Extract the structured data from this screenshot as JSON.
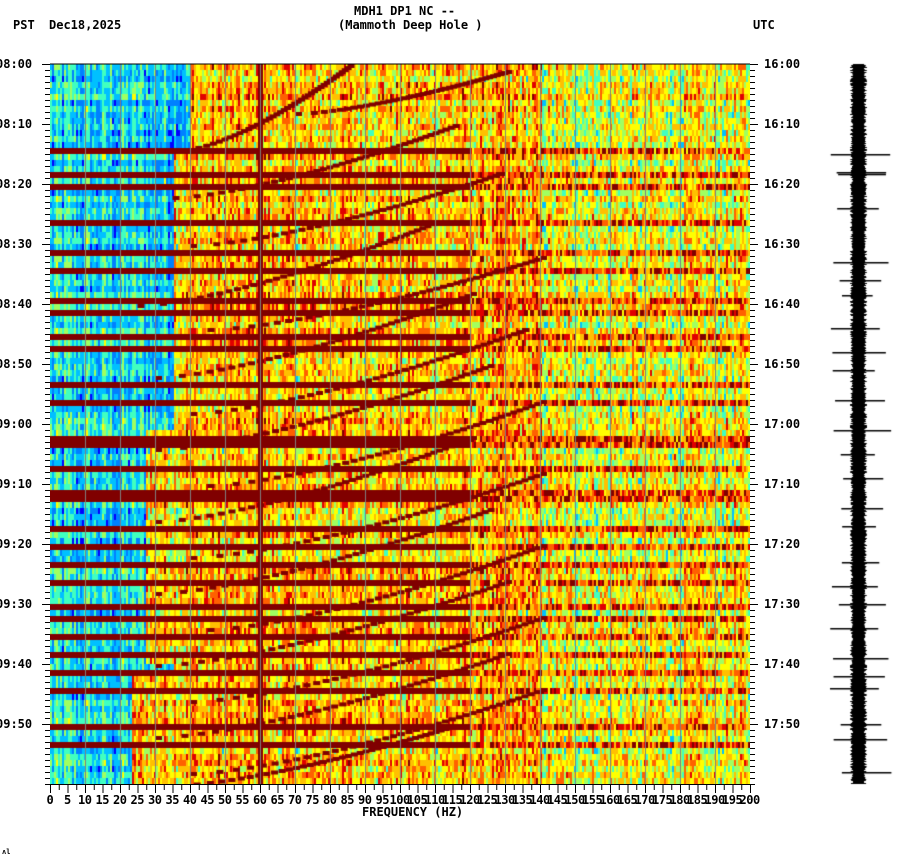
{
  "header": {
    "station_line": "MDH1 DP1 NC --",
    "site_name": "(Mammoth Deep Hole )",
    "left_timezone": "PST",
    "date": "Dec18,2025",
    "right_timezone": "UTC"
  },
  "footer_mark": "ʌl",
  "colors": {
    "background": "#ffffff",
    "axis": "#000000",
    "grid": "#7f7f7f",
    "colormap": [
      "#0000ff",
      "#0080ff",
      "#00c0ff",
      "#40ffc0",
      "#a0ff60",
      "#ffff00",
      "#ffc000",
      "#ff6000",
      "#e00000",
      "#800000"
    ]
  },
  "chart_data": {
    "type": "heatmap",
    "title": "MDH1 DP1 NC -- (Mammoth Deep Hole )",
    "xlabel": "FREQUENCY (HZ)",
    "ylabel": "",
    "xlim": [
      0,
      200
    ],
    "x_ticks": [
      0,
      5,
      10,
      15,
      20,
      25,
      30,
      35,
      40,
      45,
      50,
      55,
      60,
      65,
      70,
      75,
      80,
      85,
      90,
      95,
      100,
      105,
      110,
      115,
      120,
      125,
      130,
      135,
      140,
      145,
      150,
      155,
      160,
      165,
      170,
      175,
      180,
      185,
      190,
      195,
      200
    ],
    "x_tick_labels": [
      "0",
      "5",
      "10",
      "15",
      "20",
      "25",
      "30",
      "35",
      "40",
      "45",
      "50",
      "55",
      "60",
      "65",
      "70",
      "75",
      "80",
      "85",
      "90",
      "95",
      "100",
      "105",
      "110",
      "115",
      "120",
      "125",
      "130",
      "135",
      "140",
      "145",
      "150",
      "155",
      "160",
      "165",
      "170",
      "175",
      "180",
      "185",
      "190",
      "195",
      "200"
    ],
    "grid_x_every_hz": 10,
    "y_left_labels": [
      "08:00",
      "08:10",
      "08:20",
      "08:30",
      "08:40",
      "08:50",
      "09:00",
      "09:10",
      "09:20",
      "09:30",
      "09:40",
      "09:50"
    ],
    "y_right_labels": [
      "16:00",
      "16:10",
      "16:20",
      "16:30",
      "16:40",
      "16:50",
      "17:00",
      "17:10",
      "17:20",
      "17:30",
      "17:40",
      "17:50"
    ],
    "y_minor_ticks_per_label": 5,
    "time_span_minutes": 120,
    "persistent_line_hz": 60,
    "low_energy_region": {
      "from_hz": 0,
      "to_hz": 35,
      "note": "blue/cyan low amplitude below ~35 Hz, widening toward 09:40-09:55"
    },
    "broadband_bursts_min": [
      14.5,
      18,
      20.5,
      26,
      31.5,
      34.5,
      39,
      41.5,
      45,
      47.5,
      53,
      56,
      62,
      63.5,
      67,
      71,
      73,
      77,
      80,
      83,
      86.5,
      90,
      92,
      95.5,
      98,
      101,
      104,
      110.5,
      113.5
    ],
    "streaks": [
      {
        "t0": 0,
        "t1": 14,
        "f0": 38,
        "f1": 85
      },
      {
        "t0": 1,
        "t1": 8,
        "f0": 70,
        "f1": 130
      },
      {
        "t0": 10,
        "t1": 22,
        "f0": 35,
        "f1": 115
      },
      {
        "t0": 18,
        "t1": 30,
        "f0": 40,
        "f1": 128
      },
      {
        "t0": 26,
        "t1": 40,
        "f0": 25,
        "f1": 110
      },
      {
        "t0": 32,
        "t1": 44,
        "f0": 45,
        "f1": 140
      },
      {
        "t0": 38,
        "t1": 52,
        "f0": 30,
        "f1": 120
      },
      {
        "t0": 44,
        "t1": 58,
        "f0": 40,
        "f1": 135
      },
      {
        "t0": 50,
        "t1": 64,
        "f0": 30,
        "f1": 125
      },
      {
        "t0": 56,
        "t1": 70,
        "f0": 45,
        "f1": 140
      },
      {
        "t0": 62,
        "t1": 76,
        "f0": 30,
        "f1": 120
      },
      {
        "t0": 68,
        "t1": 82,
        "f0": 40,
        "f1": 140
      },
      {
        "t0": 74,
        "t1": 88,
        "f0": 30,
        "f1": 125
      },
      {
        "t0": 80,
        "t1": 94,
        "f0": 45,
        "f1": 140
      },
      {
        "t0": 86,
        "t1": 100,
        "f0": 30,
        "f1": 130
      },
      {
        "t0": 92,
        "t1": 106,
        "f0": 40,
        "f1": 140
      },
      {
        "t0": 98,
        "t1": 112,
        "f0": 30,
        "f1": 130
      },
      {
        "t0": 104,
        "t1": 118,
        "f0": 40,
        "f1": 140
      },
      {
        "t0": 110,
        "t1": 120,
        "f0": 35,
        "f1": 115
      }
    ],
    "seismogram": {
      "position": "right of spectrogram",
      "spikes_min": [
        15,
        18,
        18.3,
        24,
        33,
        36,
        38.5,
        44,
        48,
        51,
        56,
        61,
        65,
        69,
        74,
        77,
        83,
        87,
        90,
        94,
        99,
        102,
        104,
        110,
        112.5,
        118
      ]
    }
  }
}
